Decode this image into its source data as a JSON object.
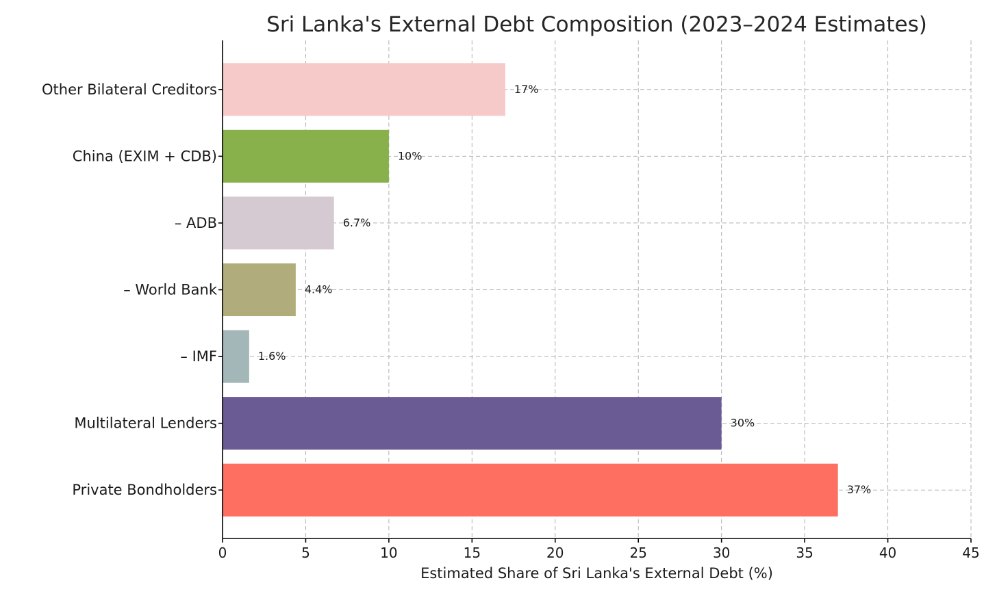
{
  "chart_data": {
    "type": "bar",
    "orientation": "horizontal",
    "title": "Sri Lanka's External Debt Composition (2023–2024 Estimates)",
    "xlabel": "Estimated Share of Sri Lanka's External Debt (%)",
    "ylabel": "",
    "xlim": [
      0,
      45
    ],
    "xticks": [
      0,
      5,
      10,
      15,
      20,
      25,
      30,
      35,
      40,
      45
    ],
    "grid": true,
    "categories": [
      "Private Bondholders",
      "Multilateral Lenders",
      "– IMF",
      "– World Bank",
      "– ADB",
      "China (EXIM + CDB)",
      "Other Bilateral Creditors"
    ],
    "values": [
      37,
      30,
      1.6,
      4.4,
      6.7,
      10,
      17
    ],
    "data_labels": [
      "37%",
      "30%",
      "1.6%",
      "4.4%",
      "6.7%",
      "10%",
      "17%"
    ],
    "colors": [
      "#ff6f61",
      "#6b5b95",
      "#a3b6b8",
      "#b0ac7b",
      "#d5cad2",
      "#88b04b",
      "#f7caca"
    ]
  }
}
